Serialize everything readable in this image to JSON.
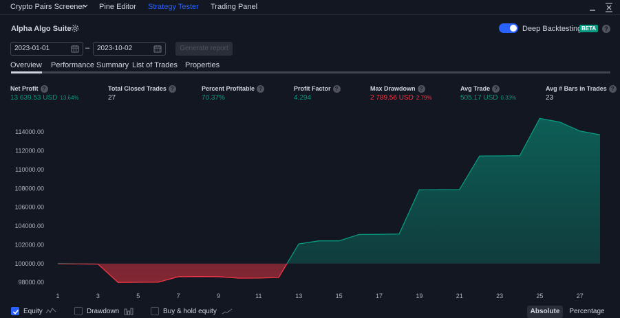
{
  "topbar": {
    "tabs": [
      {
        "label": "Crypto Pairs Screener"
      },
      {
        "label": "Pine Editor"
      },
      {
        "label": "Strategy Tester"
      },
      {
        "label": "Trading Panel"
      }
    ],
    "active_tab": "Strategy Tester"
  },
  "strategy": {
    "name": "Alpha Algo Suite",
    "deep_backtesting_label": "Deep Backtesting",
    "deep_backtesting_enabled": true,
    "beta_badge": "BETA",
    "help_glyph": "?"
  },
  "date_range": {
    "start": "2023-01-01",
    "separator": "–",
    "end": "2023-10-02",
    "generate_label": "Generate report"
  },
  "subtabs": [
    {
      "label": "Overview"
    },
    {
      "label": "Performance Summary"
    },
    {
      "label": "List of Trades"
    },
    {
      "label": "Properties"
    }
  ],
  "metrics": {
    "net_profit": {
      "label": "Net Profit",
      "value": "13 639.53 USD",
      "pct": "13.64%"
    },
    "total_closed_trades": {
      "label": "Total Closed Trades",
      "value": "27"
    },
    "percent_profitable": {
      "label": "Percent Profitable",
      "value": "70.37%"
    },
    "profit_factor": {
      "label": "Profit Factor",
      "value": "4.294"
    },
    "max_drawdown": {
      "label": "Max Drawdown",
      "value": "2 789.56 USD",
      "pct": "2.79%"
    },
    "avg_trade": {
      "label": "Avg Trade",
      "value": "505.17 USD",
      "pct": "0.33%"
    },
    "avg_bars": {
      "label": "Avg # Bars in Trades",
      "value": "23"
    }
  },
  "colors": {
    "accent": "#2962ff",
    "positive": "#089981",
    "negative": "#f23645",
    "background": "#131722"
  },
  "chart_data": {
    "type": "area",
    "title": "",
    "xlabel": "",
    "ylabel": "",
    "baseline": 100000,
    "ylim": [
      97500,
      116500
    ],
    "xlim": [
      1,
      28
    ],
    "y_ticks": [
      "98000.00",
      "100000.00",
      "102000.00",
      "104000.00",
      "106000.00",
      "108000.00",
      "110000.00",
      "112000.00",
      "114000.00"
    ],
    "x_ticks": [
      "1",
      "3",
      "5",
      "7",
      "9",
      "11",
      "13",
      "15",
      "17",
      "19",
      "21",
      "23",
      "25",
      "27"
    ],
    "grid": false,
    "series": [
      {
        "name": "Equity",
        "x": [
          1,
          2,
          3,
          4,
          5,
          6,
          7,
          8,
          9,
          10,
          11,
          12,
          13,
          14,
          15,
          16,
          17,
          18,
          19,
          20,
          21,
          22,
          23,
          24,
          25,
          26,
          27,
          28
        ],
        "values": [
          100000,
          99980,
          99950,
          98000,
          98010,
          98020,
          98600,
          98620,
          98610,
          98450,
          98460,
          98520,
          102100,
          102420,
          102420,
          103100,
          103110,
          103150,
          107850,
          107860,
          107880,
          111450,
          111460,
          111480,
          115450,
          115050,
          114100,
          113700
        ]
      }
    ]
  },
  "legend": {
    "equity": {
      "label": "Equity",
      "checked": true
    },
    "drawdown": {
      "label": "Drawdown",
      "checked": false
    },
    "buy_hold": {
      "label": "Buy & hold equity",
      "checked": false
    }
  },
  "modes": {
    "absolute": "Absolute",
    "percentage": "Percentage",
    "active": "Absolute"
  }
}
